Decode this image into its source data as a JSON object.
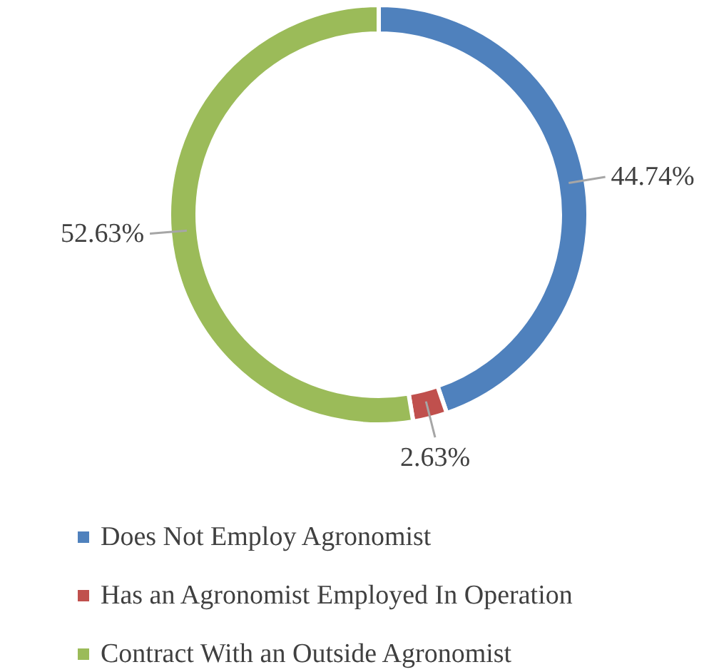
{
  "chart_data": {
    "type": "donut",
    "categories": [
      "Does Not Employ Agronomist",
      "Has an Agronomist Employed In Operation",
      "Contract With an Outside Agronomist"
    ],
    "values": [
      44.74,
      2.63,
      52.63
    ],
    "colors": [
      "#4f81bd",
      "#c0504d",
      "#9bbb59"
    ],
    "value_labels": [
      "44.74%",
      "2.63%",
      "52.63%"
    ],
    "legend": "bottom"
  }
}
